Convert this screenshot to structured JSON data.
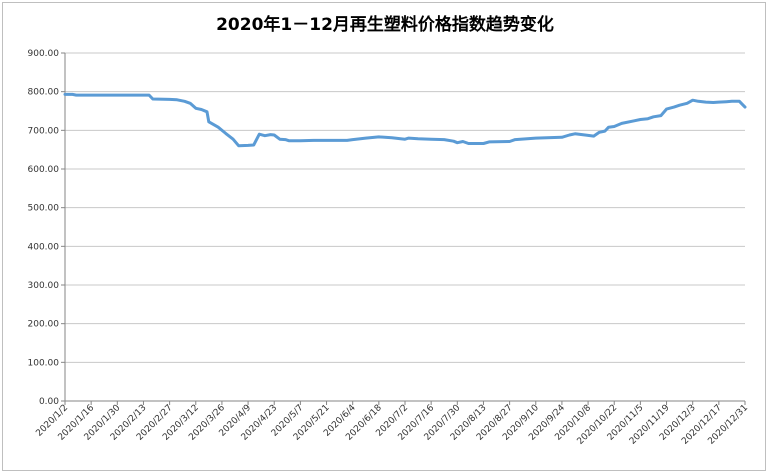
{
  "chart_data": {
    "type": "line",
    "title": "2020年1－12月再生塑料价格指数趋势变化",
    "xlabel": "",
    "ylabel": "",
    "ylim": [
      0,
      900
    ],
    "yticks": [
      "0.00",
      "100.00",
      "200.00",
      "300.00",
      "400.00",
      "500.00",
      "600.00",
      "700.00",
      "800.00",
      "900.00"
    ],
    "xticks": [
      "2020/1/2",
      "2020/1/16",
      "2020/1/30",
      "2020/2/13",
      "2020/2/27",
      "2020/3/12",
      "2020/3/26",
      "2020/4/9",
      "2020/4/23",
      "2020/5/7",
      "2020/5/21",
      "2020/6/4",
      "2020/6/18",
      "2020/7/2",
      "2020/7/16",
      "2020/7/30",
      "2020/8/13",
      "2020/8/27",
      "2020/9/10",
      "2020/9/24",
      "2020/10/8",
      "2020/10/22",
      "2020/11/5",
      "2020/11/19",
      "2020/12/3",
      "2020/12/17",
      "2020/12/31"
    ],
    "grid": true,
    "legend": "none",
    "color": "#5b9bd5",
    "x_range": [
      "2020/1/2",
      "2020/12/31"
    ],
    "series": [
      {
        "points": [
          [
            "2020/1/2",
            793
          ],
          [
            "2020/1/6",
            793
          ],
          [
            "2020/1/8",
            791
          ],
          [
            "2020/1/16",
            791
          ],
          [
            "2020/1/30",
            791
          ],
          [
            "2020/2/13",
            791
          ],
          [
            "2020/2/16",
            791
          ],
          [
            "2020/2/18",
            781
          ],
          [
            "2020/2/27",
            780
          ],
          [
            "2020/3/2",
            779
          ],
          [
            "2020/3/6",
            775
          ],
          [
            "2020/3/9",
            770
          ],
          [
            "2020/3/12",
            757
          ],
          [
            "2020/3/15",
            754
          ],
          [
            "2020/3/18",
            748
          ],
          [
            "2020/3/19",
            722
          ],
          [
            "2020/3/24",
            708
          ],
          [
            "2020/3/28",
            692
          ],
          [
            "2020/4/1",
            677
          ],
          [
            "2020/4/4",
            660
          ],
          [
            "2020/4/9",
            661
          ],
          [
            "2020/4/12",
            662
          ],
          [
            "2020/4/15",
            690
          ],
          [
            "2020/4/18",
            686
          ],
          [
            "2020/4/21",
            689
          ],
          [
            "2020/4/23",
            688
          ],
          [
            "2020/4/26",
            677
          ],
          [
            "2020/4/29",
            676
          ],
          [
            "2020/5/1",
            673
          ],
          [
            "2020/5/7",
            673
          ],
          [
            "2020/5/14",
            674
          ],
          [
            "2020/5/21",
            674
          ],
          [
            "2020/6/1",
            674
          ],
          [
            "2020/6/4",
            676
          ],
          [
            "2020/6/11",
            680
          ],
          [
            "2020/6/18",
            683
          ],
          [
            "2020/6/25",
            681
          ],
          [
            "2020/7/2",
            677
          ],
          [
            "2020/7/4",
            680
          ],
          [
            "2020/7/9",
            678
          ],
          [
            "2020/7/16",
            677
          ],
          [
            "2020/7/23",
            676
          ],
          [
            "2020/7/28",
            672
          ],
          [
            "2020/7/30",
            668
          ],
          [
            "2020/8/2",
            671
          ],
          [
            "2020/8/5",
            666
          ],
          [
            "2020/8/13",
            666
          ],
          [
            "2020/8/16",
            670
          ],
          [
            "2020/8/27",
            671
          ],
          [
            "2020/8/30",
            676
          ],
          [
            "2020/9/10",
            680
          ],
          [
            "2020/9/24",
            682
          ],
          [
            "2020/9/28",
            688
          ],
          [
            "2020/10/1",
            691
          ],
          [
            "2020/10/8",
            687
          ],
          [
            "2020/10/11",
            685
          ],
          [
            "2020/10/14",
            695
          ],
          [
            "2020/10/17",
            698
          ],
          [
            "2020/10/19",
            708
          ],
          [
            "2020/10/22",
            710
          ],
          [
            "2020/10/26",
            718
          ],
          [
            "2020/11/2",
            725
          ],
          [
            "2020/11/5",
            728
          ],
          [
            "2020/11/9",
            730
          ],
          [
            "2020/11/12",
            735
          ],
          [
            "2020/11/16",
            738
          ],
          [
            "2020/11/19",
            755
          ],
          [
            "2020/11/23",
            760
          ],
          [
            "2020/11/26",
            765
          ],
          [
            "2020/11/30",
            770
          ],
          [
            "2020/12/3",
            778
          ],
          [
            "2020/12/6",
            775
          ],
          [
            "2020/12/10",
            773
          ],
          [
            "2020/12/14",
            772
          ],
          [
            "2020/12/17",
            773
          ],
          [
            "2020/12/21",
            774
          ],
          [
            "2020/12/24",
            775
          ],
          [
            "2020/12/28",
            775
          ],
          [
            "2020/12/29",
            770
          ],
          [
            "2020/12/31",
            760
          ]
        ]
      }
    ]
  }
}
